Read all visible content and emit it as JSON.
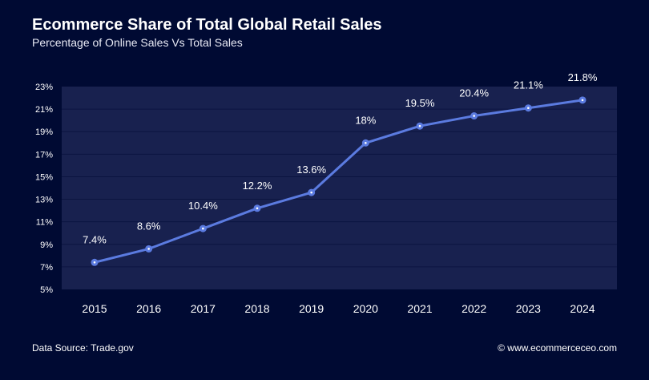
{
  "chart_data": {
    "type": "line",
    "title": "Ecommerce Share of Total Global Retail Sales",
    "subtitle": "Percentage of Online Sales Vs Total Sales",
    "categories": [
      "2015",
      "2016",
      "2017",
      "2018",
      "2019",
      "2020",
      "2021",
      "2022",
      "2023",
      "2024"
    ],
    "values": [
      7.4,
      8.6,
      10.4,
      12.2,
      13.6,
      18,
      19.5,
      20.4,
      21.1,
      21.8
    ],
    "data_labels": [
      "7.4%",
      "8.6%",
      "10.4%",
      "12.2%",
      "13.6%",
      "18%",
      "19.5%",
      "20.4%",
      "21.1%",
      "21.8%"
    ],
    "ylim": [
      5,
      23
    ],
    "yticks": [
      "5%",
      "7%",
      "9%",
      "11%",
      "13%",
      "15%",
      "17%",
      "19%",
      "21%",
      "23%"
    ],
    "grid": true,
    "colors": {
      "background": "#000a33",
      "plot_area": "#18214f",
      "line": "#5b7be0"
    }
  },
  "footer": {
    "source": "Data Source: Trade.gov",
    "copyright": "© www.ecommerceceo.com"
  }
}
